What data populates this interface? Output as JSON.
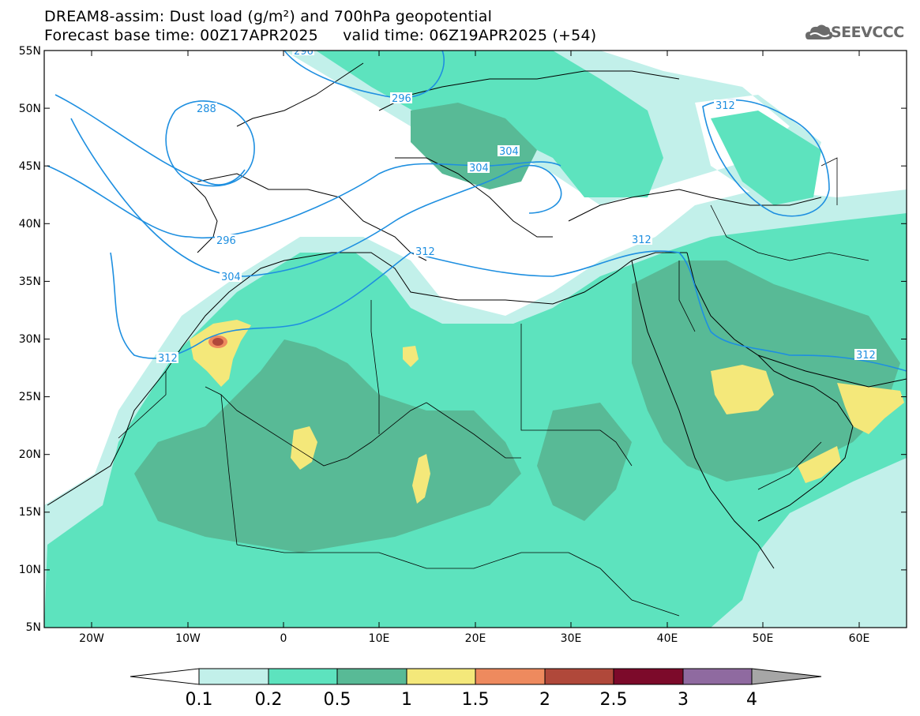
{
  "header": {
    "title_line1": "DREAM8-assim: Dust load (g/m²) and 700hPa geopotential",
    "title_line2": "Forecast base time: 00Z17APR2025     valid time: 06Z19APR2025 (+54)"
  },
  "logo": {
    "text": "SEEVCCC",
    "icon": "cloud-icon"
  },
  "map": {
    "lat_labels": [
      "55N",
      "50N",
      "45N",
      "40N",
      "35N",
      "30N",
      "25N",
      "20N",
      "15N",
      "10N",
      "5N"
    ],
    "lon_labels": [
      "20W",
      "10W",
      "0",
      "10E",
      "20E",
      "30E",
      "40E",
      "50E",
      "60E"
    ],
    "geopotential_contours": [
      "288",
      "296",
      "296",
      "296",
      "304",
      "304",
      "304",
      "312",
      "312",
      "312",
      "312",
      "312"
    ],
    "contour_color": "#1e8fe0"
  },
  "colorbar": {
    "levels": [
      "0.1",
      "0.2",
      "0.5",
      "1",
      "1.5",
      "2",
      "2.5",
      "3",
      "4"
    ],
    "colors": [
      "#ffffff",
      "#c2f0ea",
      "#5de3be",
      "#58ba96",
      "#f4e87a",
      "#ee8a5e",
      "#b0483a",
      "#7c0a2a",
      "#8f6aa0",
      "#a6a6a6"
    ]
  }
}
